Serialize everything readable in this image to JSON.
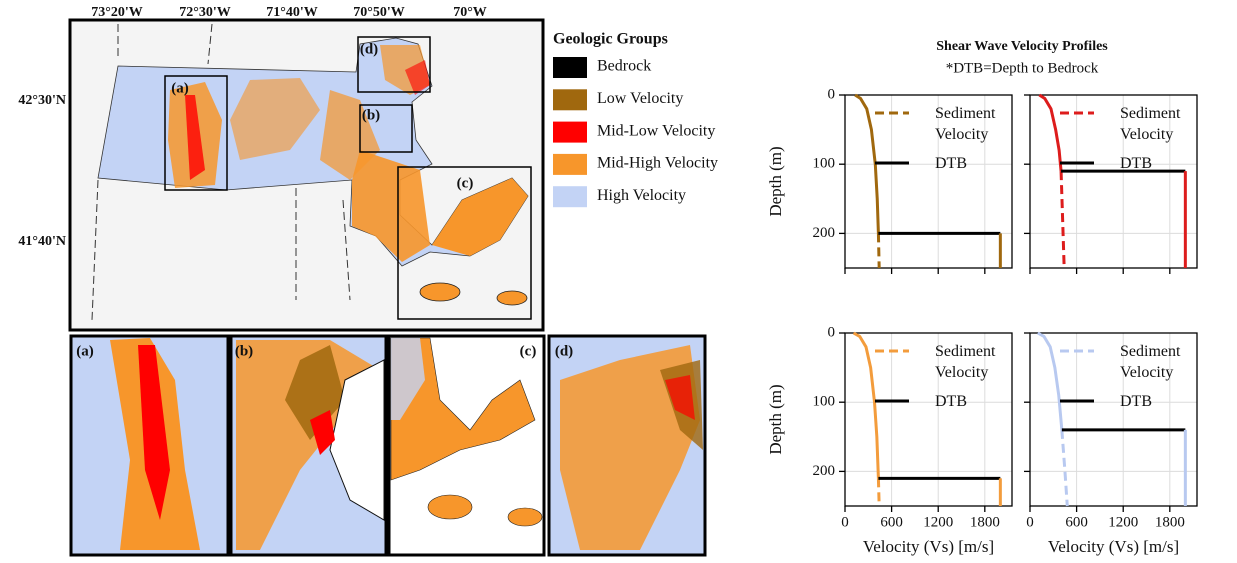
{
  "map": {
    "lon_labels": [
      "73°20'W",
      "72°30'W",
      "71°40'W",
      "70°50'W",
      "70°W"
    ],
    "lat_labels": [
      "42°30'N",
      "41°40'N"
    ],
    "inset_labels": [
      "(a)",
      "(b)",
      "(c)",
      "(d)"
    ],
    "panel_labels": [
      "(a)",
      "(b)",
      "(c)",
      "(d)"
    ]
  },
  "legend": {
    "title": "Geologic Groups",
    "items": [
      {
        "label": "Bedrock",
        "color": "#000000"
      },
      {
        "label": "Low Velocity",
        "color": "#a0680e"
      },
      {
        "label": "Mid-Low Velocity",
        "color": "#ff0000"
      },
      {
        "label": "Mid-High Velocity",
        "color": "#f7962b"
      },
      {
        "label": "High Velocity",
        "color": "#c3d3f5"
      }
    ]
  },
  "figure": {
    "title": "Shear Wave Velocity Profiles",
    "subtitle": "*DTB=Depth to Bedrock"
  },
  "chart_data": [
    {
      "type": "line",
      "ylabel": "Depth (m)",
      "xlim": [
        0,
        2150
      ],
      "ylim": [
        0,
        250
      ],
      "y_inverted": true,
      "xticks": [
        0,
        600,
        1200,
        1800
      ],
      "yticks": [
        0,
        100,
        200
      ],
      "show_xticklabels": false,
      "show_yticklabels": true,
      "grid": true,
      "legend": "upper right",
      "series": [
        {
          "name": "Sediment Velocity",
          "color": "#a0680e",
          "linestyle": "dashed",
          "x": [
            130,
            200,
            280,
            340,
            390,
            415,
            430,
            440
          ],
          "values": [
            0,
            5,
            20,
            50,
            100,
            150,
            200,
            250
          ]
        },
        {
          "name": "DTB",
          "color": "#000000",
          "x": [
            430,
            2000
          ],
          "values": [
            200,
            200
          ]
        },
        {
          "color": "#a0680e",
          "x": [
            2000,
            2000
          ],
          "values": [
            200,
            250
          ]
        }
      ]
    },
    {
      "type": "line",
      "xlim": [
        0,
        2150
      ],
      "ylim": [
        0,
        250
      ],
      "y_inverted": true,
      "xticks": [
        0,
        600,
        1200,
        1800
      ],
      "yticks": [
        0,
        100,
        200
      ],
      "show_xticklabels": false,
      "show_yticklabels": false,
      "grid": true,
      "legend": "upper right",
      "series": [
        {
          "name": "Sediment Velocity",
          "color": "#dd1c1c",
          "linestyle": "dashed",
          "x": [
            120,
            190,
            270,
            330,
            375,
            400,
            420,
            440
          ],
          "values": [
            0,
            5,
            20,
            50,
            80,
            110,
            180,
            250
          ]
        },
        {
          "name": "DTB",
          "color": "#000000",
          "x": [
            400,
            2000
          ],
          "values": [
            110,
            110
          ]
        },
        {
          "color": "#dd1c1c",
          "x": [
            2000,
            2000
          ],
          "values": [
            110,
            250
          ]
        }
      ]
    },
    {
      "type": "line",
      "ylabel": "Depth (m)",
      "xlabel": "Velocity (Vs) [m/s]",
      "xlim": [
        0,
        2150
      ],
      "ylim": [
        0,
        250
      ],
      "y_inverted": true,
      "xticks": [
        0,
        600,
        1200,
        1800
      ],
      "yticks": [
        0,
        100,
        200
      ],
      "show_xticklabels": true,
      "show_yticklabels": true,
      "grid": true,
      "legend": "upper right",
      "series": [
        {
          "name": "Sediment Velocity",
          "color": "#f39c3c",
          "linestyle": "dashed",
          "x": [
            110,
            190,
            270,
            330,
            380,
            410,
            430,
            440
          ],
          "values": [
            0,
            5,
            20,
            50,
            100,
            150,
            210,
            250
          ]
        },
        {
          "name": "DTB",
          "color": "#000000",
          "x": [
            430,
            2000
          ],
          "values": [
            210,
            210
          ]
        },
        {
          "color": "#f39c3c",
          "x": [
            2000,
            2000
          ],
          "values": [
            210,
            250
          ]
        }
      ]
    },
    {
      "type": "line",
      "xlabel": "Velocity (Vs) [m/s]",
      "xlim": [
        0,
        2150
      ],
      "ylim": [
        0,
        250
      ],
      "y_inverted": true,
      "xticks": [
        0,
        600,
        1200,
        1800
      ],
      "yticks": [
        0,
        100,
        200
      ],
      "show_xticklabels": true,
      "show_yticklabels": false,
      "grid": true,
      "legend": "upper right",
      "series": [
        {
          "name": "Sediment Velocity",
          "color": "#b8c9f0",
          "linestyle": "dashed",
          "x": [
            100,
            180,
            260,
            320,
            370,
            410,
            450,
            480
          ],
          "values": [
            0,
            5,
            20,
            50,
            90,
            140,
            200,
            250
          ]
        },
        {
          "name": "DTB",
          "color": "#000000",
          "x": [
            410,
            2000
          ],
          "values": [
            140,
            140
          ]
        },
        {
          "color": "#b8c9f0",
          "x": [
            2000,
            2000
          ],
          "values": [
            140,
            250
          ]
        }
      ]
    }
  ]
}
